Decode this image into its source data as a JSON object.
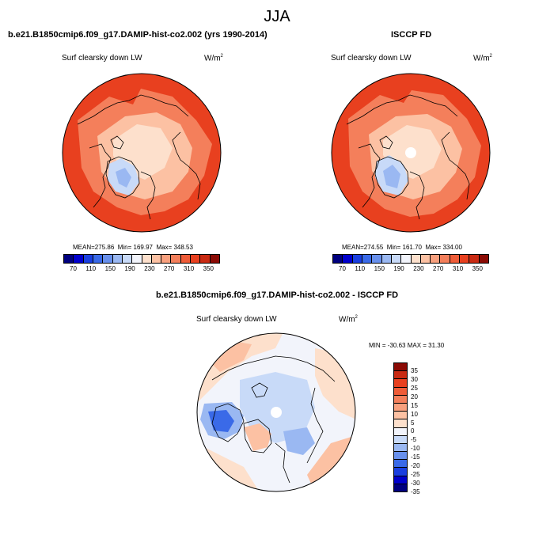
{
  "figure": {
    "title": "JJA",
    "variable_label": "Surf clearsky down LW",
    "units_base": "W/m",
    "units_exp": "2"
  },
  "panels": {
    "model": {
      "title": "b.e21.B1850cmip6.f09_g17.DAMIP-hist-co2.002 (yrs 1990-2014)",
      "stats": {
        "mean_label": "MEAN=",
        "mean": "275.86",
        "min_label": "Min=",
        "min": "169.97",
        "max_label": "Max=",
        "max": "348.53"
      }
    },
    "obs": {
      "title": "ISCCP FD",
      "stats": {
        "mean_label": "MEAN=",
        "mean": "274.55",
        "min_label": "Min=",
        "min": "161.70",
        "max_label": "Max=",
        "max": "334.00"
      }
    },
    "diff": {
      "title": "b.e21.B1850cmip6.f09_g17.DAMIP-hist-co2.002 - ISCCP FD",
      "stats_text": "MIN = -30.63 MAX =  31.30"
    }
  },
  "colorbar_top": {
    "tick_labels": [
      "70",
      "110",
      "150",
      "190",
      "230",
      "270",
      "310",
      "350"
    ],
    "colors": [
      "#00007f",
      "#0000cc",
      "#1a3fe0",
      "#3a6ae8",
      "#6890ec",
      "#9ab8f2",
      "#c8daf8",
      "#f2f4fb",
      "#fde0cc",
      "#fcc1a3",
      "#f8a07e",
      "#f47f5b",
      "#ef5c38",
      "#e8401f",
      "#c92a12",
      "#8b0b05"
    ]
  },
  "colorbar_diff": {
    "tick_labels": [
      "35",
      "30",
      "25",
      "20",
      "15",
      "10",
      "5",
      "0",
      "-5",
      "-10",
      "-15",
      "-20",
      "-25",
      "-30",
      "-35"
    ],
    "colors": [
      "#8b0b05",
      "#c92a12",
      "#e8401f",
      "#ef5c38",
      "#f47f5b",
      "#f8a07e",
      "#fcc1a3",
      "#fde0cc",
      "#f2f4fb",
      "#c8daf8",
      "#9ab8f2",
      "#6890ec",
      "#3a6ae8",
      "#1a3fe0",
      "#0000cc",
      "#00007f"
    ]
  },
  "colors": {
    "warm_dark": "#e8401f",
    "warm_mid": "#f47f5b",
    "warm_light": "#fcc1a3",
    "warm_pale": "#fde0cc",
    "cold_light": "#c8daf8",
    "cold_mid": "#9ab8f2",
    "cold_dark": "#3a6ae8",
    "neutral": "#f2f4fb"
  }
}
